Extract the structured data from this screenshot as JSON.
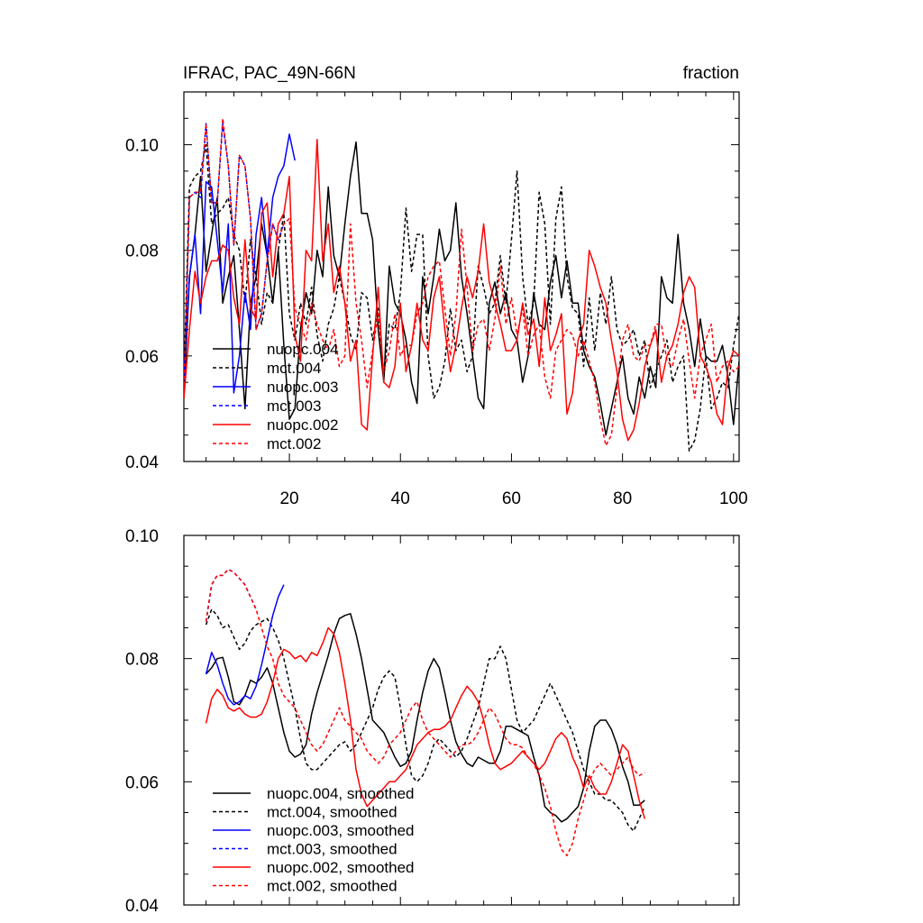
{
  "figure": {
    "left_title": "IFRAC, PAC_49N-66N",
    "right_title": "fraction"
  },
  "chart_data": [
    {
      "type": "line",
      "title": "IFRAC, PAC_49N-66N",
      "units_label": "fraction",
      "xlim": [
        1,
        101
      ],
      "ylim": [
        0.04,
        0.11
      ],
      "x_ticks": [
        "20",
        "40",
        "60",
        "80",
        "100"
      ],
      "y_ticks": [
        "0.04",
        "0.06",
        "0.08",
        "0.10"
      ],
      "legend_position": "bottom-left",
      "series": [
        {
          "name": "nuopc.004",
          "color": "#000000",
          "dash": false,
          "x_start": 1,
          "values": [
            0.052,
            0.075,
            0.083,
            0.094,
            0.076,
            0.083,
            0.09,
            0.07,
            0.075,
            0.079,
            0.065,
            0.05,
            0.07,
            0.075,
            0.085,
            0.079,
            0.07,
            0.08,
            0.062,
            0.048,
            0.05,
            0.065,
            0.072,
            0.068,
            0.08,
            0.075,
            0.092,
            0.079,
            0.075,
            0.085,
            0.094,
            0.1005,
            0.087,
            0.087,
            0.082,
            0.065,
            0.055,
            0.077,
            0.07,
            0.068,
            0.063,
            0.055,
            0.051,
            0.075,
            0.068,
            0.075,
            0.084,
            0.078,
            0.08,
            0.089,
            0.075,
            0.068,
            0.06,
            0.052,
            0.05,
            0.07,
            0.074,
            0.068,
            0.072,
            0.065,
            0.063,
            0.055,
            0.06,
            0.072,
            0.066,
            0.065,
            0.074,
            0.079,
            0.071,
            0.078,
            0.07,
            0.07,
            0.061,
            0.058,
            0.056,
            0.051,
            0.045,
            0.05,
            0.055,
            0.06,
            0.052,
            0.049,
            0.056,
            0.052,
            0.058,
            0.054,
            0.075,
            0.071,
            0.07,
            0.083,
            0.07,
            0.065,
            0.058,
            0.067,
            0.06,
            0.059,
            0.059,
            0.062,
            0.056,
            0.047,
            0.059
          ]
        },
        {
          "name": "mct.004",
          "color": "#000000",
          "dash": true,
          "x_start": 1,
          "values": [
            0.055,
            0.092,
            0.094,
            0.095,
            0.1,
            0.085,
            0.087,
            0.088,
            0.09,
            0.083,
            0.08,
            0.07,
            0.082,
            0.075,
            0.066,
            0.072,
            0.07,
            0.08,
            0.087,
            0.068,
            0.063,
            0.07,
            0.066,
            0.073,
            0.064,
            0.059,
            0.066,
            0.069,
            0.075,
            0.07,
            0.064,
            0.061,
            0.072,
            0.071,
            0.063,
            0.069,
            0.056,
            0.066,
            0.065,
            0.072,
            0.088,
            0.076,
            0.083,
            0.083,
            0.06,
            0.052,
            0.054,
            0.059,
            0.069,
            0.061,
            0.063,
            0.057,
            0.06,
            0.077,
            0.073,
            0.068,
            0.07,
            0.079,
            0.07,
            0.082,
            0.095,
            0.075,
            0.066,
            0.07,
            0.091,
            0.085,
            0.066,
            0.086,
            0.092,
            0.075,
            0.069,
            0.068,
            0.058,
            0.071,
            0.061,
            0.072,
            0.066,
            0.075,
            0.065,
            0.062,
            0.063,
            0.065,
            0.06,
            0.063,
            0.054,
            0.057,
            0.06,
            0.063,
            0.055,
            0.058,
            0.06,
            0.042,
            0.044,
            0.05,
            0.06,
            0.05,
            0.052,
            0.055,
            0.054,
            0.062,
            0.068
          ]
        },
        {
          "name": "nuopc.003",
          "color": "#0000ff",
          "dash": false,
          "x_start": 1,
          "values": [
            0.056,
            0.075,
            0.083,
            0.068,
            0.093,
            0.092,
            0.082,
            0.072,
            0.085,
            0.053,
            0.06,
            0.072,
            0.065,
            0.083,
            0.09,
            0.079,
            0.09,
            0.094,
            0.096,
            0.102,
            0.097
          ]
        },
        {
          "name": "mct.003",
          "color": "#0000ff",
          "dash": true,
          "x_start": 1,
          "values": [
            0.053,
            0.09,
            0.091,
            0.09,
            0.104,
            0.089,
            0.089,
            0.104,
            0.096,
            0.081,
            0.098,
            0.096,
            0.086,
            0.065,
            0.068,
            0.078,
            0.085,
            0.082,
            0.085
          ]
        },
        {
          "name": "nuopc.002",
          "color": "#ff0000",
          "dash": false,
          "x_start": 1,
          "values": [
            0.052,
            0.065,
            0.076,
            0.07,
            0.075,
            0.078,
            0.078,
            0.081,
            0.08,
            0.071,
            0.066,
            0.082,
            0.069,
            0.067,
            0.087,
            0.089,
            0.075,
            0.085,
            0.087,
            0.094,
            0.064,
            0.059,
            0.08,
            0.078,
            0.101,
            0.078,
            0.085,
            0.072,
            0.077,
            0.07,
            0.059,
            0.063,
            0.047,
            0.046,
            0.06,
            0.073,
            0.055,
            0.054,
            0.058,
            0.07,
            0.057,
            0.062,
            0.07,
            0.063,
            0.061,
            0.071,
            0.075,
            0.065,
            0.057,
            0.062,
            0.069,
            0.075,
            0.071,
            0.076,
            0.085,
            0.074,
            0.07,
            0.066,
            0.061,
            0.061,
            0.063,
            0.07,
            0.064,
            0.067,
            0.058,
            0.071,
            0.061,
            0.064,
            0.068,
            0.049,
            0.053,
            0.063,
            0.066,
            0.08,
            0.077,
            0.073,
            0.07,
            0.063,
            0.057,
            0.048,
            0.044,
            0.046,
            0.051,
            0.058,
            0.062,
            0.065,
            0.055,
            0.06,
            0.062,
            0.066,
            0.072,
            0.075,
            0.073,
            0.06,
            0.058,
            0.055,
            0.049,
            0.047,
            0.058,
            0.061,
            0.06
          ]
        },
        {
          "name": "mct.002",
          "color": "#ff0000",
          "dash": true,
          "x_start": 1,
          "values": [
            0.052,
            0.09,
            0.091,
            0.091,
            0.104,
            0.089,
            0.089,
            0.105,
            0.096,
            0.081,
            0.098,
            0.096,
            0.086,
            0.065,
            0.068,
            0.078,
            0.085,
            0.082,
            0.085,
            0.086,
            0.069,
            0.066,
            0.063,
            0.07,
            0.066,
            0.063,
            0.061,
            0.065,
            0.058,
            0.06,
            0.085,
            0.07,
            0.063,
            0.054,
            0.061,
            0.068,
            0.057,
            0.061,
            0.068,
            0.06,
            0.062,
            0.062,
            0.068,
            0.07,
            0.075,
            0.077,
            0.078,
            0.069,
            0.06,
            0.068,
            0.084,
            0.073,
            0.061,
            0.066,
            0.067,
            0.061,
            0.067,
            0.077,
            0.066,
            0.071,
            0.064,
            0.069,
            0.06,
            0.064,
            0.066,
            0.056,
            0.052,
            0.061,
            0.063,
            0.065,
            0.064,
            0.06,
            0.063,
            0.059,
            0.055,
            0.048,
            0.043,
            0.045,
            0.054,
            0.063,
            0.066,
            0.06,
            0.059,
            0.062,
            0.062,
            0.066,
            0.066,
            0.059,
            0.058,
            0.063,
            0.067,
            0.059,
            0.052,
            0.06,
            0.063,
            0.066,
            0.055,
            0.058,
            0.059,
            0.057,
            0.058
          ]
        }
      ]
    },
    {
      "type": "line",
      "title": "",
      "xlim": [
        1,
        101
      ],
      "ylim": [
        0.04,
        0.1
      ],
      "y_ticks": [
        "0.04",
        "0.06",
        "0.08",
        "0.10"
      ],
      "legend_position": "bottom-left",
      "series": [
        {
          "name": "nuopc.004, smoothed",
          "color": "#000000",
          "dash": false,
          "x_start": 5,
          "values": [
            0.0775,
            0.0785,
            0.08,
            0.0802,
            0.077,
            0.073,
            0.0725,
            0.074,
            0.0765,
            0.076,
            0.077,
            0.0785,
            0.076,
            0.072,
            0.068,
            0.065,
            0.064,
            0.0645,
            0.066,
            0.071,
            0.0745,
            0.0775,
            0.0805,
            0.084,
            0.0865,
            0.087,
            0.0873,
            0.084,
            0.08,
            0.075,
            0.07,
            0.069,
            0.068,
            0.066,
            0.064,
            0.0625,
            0.063,
            0.065,
            0.07,
            0.0745,
            0.078,
            0.08,
            0.0785,
            0.0745,
            0.07,
            0.0665,
            0.0645,
            0.063,
            0.0625,
            0.064,
            0.0635,
            0.063,
            0.063,
            0.065,
            0.069,
            0.069,
            0.0685,
            0.068,
            0.0675,
            0.064,
            0.061,
            0.056,
            0.055,
            0.0545,
            0.0535,
            0.054,
            0.055,
            0.056,
            0.059,
            0.065,
            0.069,
            0.07,
            0.07,
            0.0685,
            0.066,
            0.0625,
            0.06,
            0.0562,
            0.0562,
            0.057
          ]
        },
        {
          "name": "mct.004, smoothed",
          "color": "#000000",
          "dash": true,
          "x_start": 5,
          "values": [
            0.0855,
            0.088,
            0.087,
            0.085,
            0.0855,
            0.0835,
            0.0815,
            0.0825,
            0.0845,
            0.0855,
            0.086,
            0.0865,
            0.085,
            0.083,
            0.08,
            0.076,
            0.072,
            0.067,
            0.063,
            0.062,
            0.062,
            0.063,
            0.064,
            0.065,
            0.066,
            0.0665,
            0.065,
            0.066,
            0.068,
            0.07,
            0.072,
            0.075,
            0.077,
            0.078,
            0.077,
            0.072,
            0.066,
            0.061,
            0.06,
            0.061,
            0.063,
            0.066,
            0.067,
            0.066,
            0.065,
            0.064,
            0.065,
            0.067,
            0.0695,
            0.072,
            0.076,
            0.08,
            0.08,
            0.082,
            0.08,
            0.075,
            0.07,
            0.068,
            0.069,
            0.07,
            0.072,
            0.074,
            0.076,
            0.074,
            0.072,
            0.07,
            0.068,
            0.065,
            0.062,
            0.06,
            0.058,
            0.058,
            0.057,
            0.057,
            0.056,
            0.055,
            0.053,
            0.052,
            0.054,
            0.056
          ]
        },
        {
          "name": "nuopc.003, smoothed",
          "color": "#0000ff",
          "dash": false,
          "x_start": 5,
          "values": [
            0.0775,
            0.081,
            0.079,
            0.076,
            0.0735,
            0.0725,
            0.073,
            0.074,
            0.0735,
            0.0755,
            0.079,
            0.083,
            0.087,
            0.09,
            0.092
          ]
        },
        {
          "name": "mct.003, smoothed",
          "color": "#0000ff",
          "dash": true,
          "x_start": 5,
          "values": [
            0.086,
            0.092,
            0.0935,
            0.0935,
            0.0945,
            0.094,
            0.093,
            0.092,
            0.09,
            0.088
          ]
        },
        {
          "name": "nuopc.002, smoothed",
          "color": "#ff0000",
          "dash": false,
          "x_start": 5,
          "values": [
            0.0695,
            0.0735,
            0.075,
            0.074,
            0.072,
            0.0715,
            0.072,
            0.071,
            0.0705,
            0.0705,
            0.071,
            0.073,
            0.076,
            0.08,
            0.0815,
            0.081,
            0.08,
            0.0805,
            0.0795,
            0.081,
            0.0805,
            0.0825,
            0.085,
            0.084,
            0.081,
            0.076,
            0.07,
            0.062,
            0.058,
            0.056,
            0.057,
            0.058,
            0.059,
            0.06,
            0.06,
            0.061,
            0.062,
            0.064,
            0.066,
            0.067,
            0.068,
            0.0685,
            0.0685,
            0.069,
            0.07,
            0.072,
            0.074,
            0.0755,
            0.0745,
            0.073,
            0.07,
            0.066,
            0.063,
            0.062,
            0.0625,
            0.063,
            0.064,
            0.065,
            0.064,
            0.063,
            0.062,
            0.063,
            0.065,
            0.067,
            0.068,
            0.067,
            0.064,
            0.062,
            0.059,
            0.061,
            0.059,
            0.058,
            0.058,
            0.06,
            0.063,
            0.066,
            0.065,
            0.061,
            0.057,
            0.054
          ]
        },
        {
          "name": "mct.002, smoothed",
          "color": "#ff0000",
          "dash": true,
          "x_start": 5,
          "values": [
            0.086,
            0.092,
            0.0935,
            0.0935,
            0.0945,
            0.094,
            0.093,
            0.092,
            0.09,
            0.088,
            0.085,
            0.082,
            0.08,
            0.076,
            0.074,
            0.073,
            0.072,
            0.07,
            0.068,
            0.066,
            0.065,
            0.066,
            0.068,
            0.07,
            0.072,
            0.07,
            0.069,
            0.068,
            0.067,
            0.065,
            0.064,
            0.063,
            0.064,
            0.066,
            0.067,
            0.068,
            0.07,
            0.072,
            0.073,
            0.07,
            0.068,
            0.067,
            0.066,
            0.065,
            0.064,
            0.065,
            0.066,
            0.066,
            0.0665,
            0.068,
            0.07,
            0.072,
            0.071,
            0.069,
            0.067,
            0.066,
            0.066,
            0.0655,
            0.064,
            0.063,
            0.061,
            0.059,
            0.056,
            0.052,
            0.049,
            0.048,
            0.05,
            0.054,
            0.057,
            0.06,
            0.062,
            0.063,
            0.062,
            0.061,
            0.062,
            0.063,
            0.064,
            0.062,
            0.061,
            0.0615
          ]
        }
      ]
    }
  ]
}
